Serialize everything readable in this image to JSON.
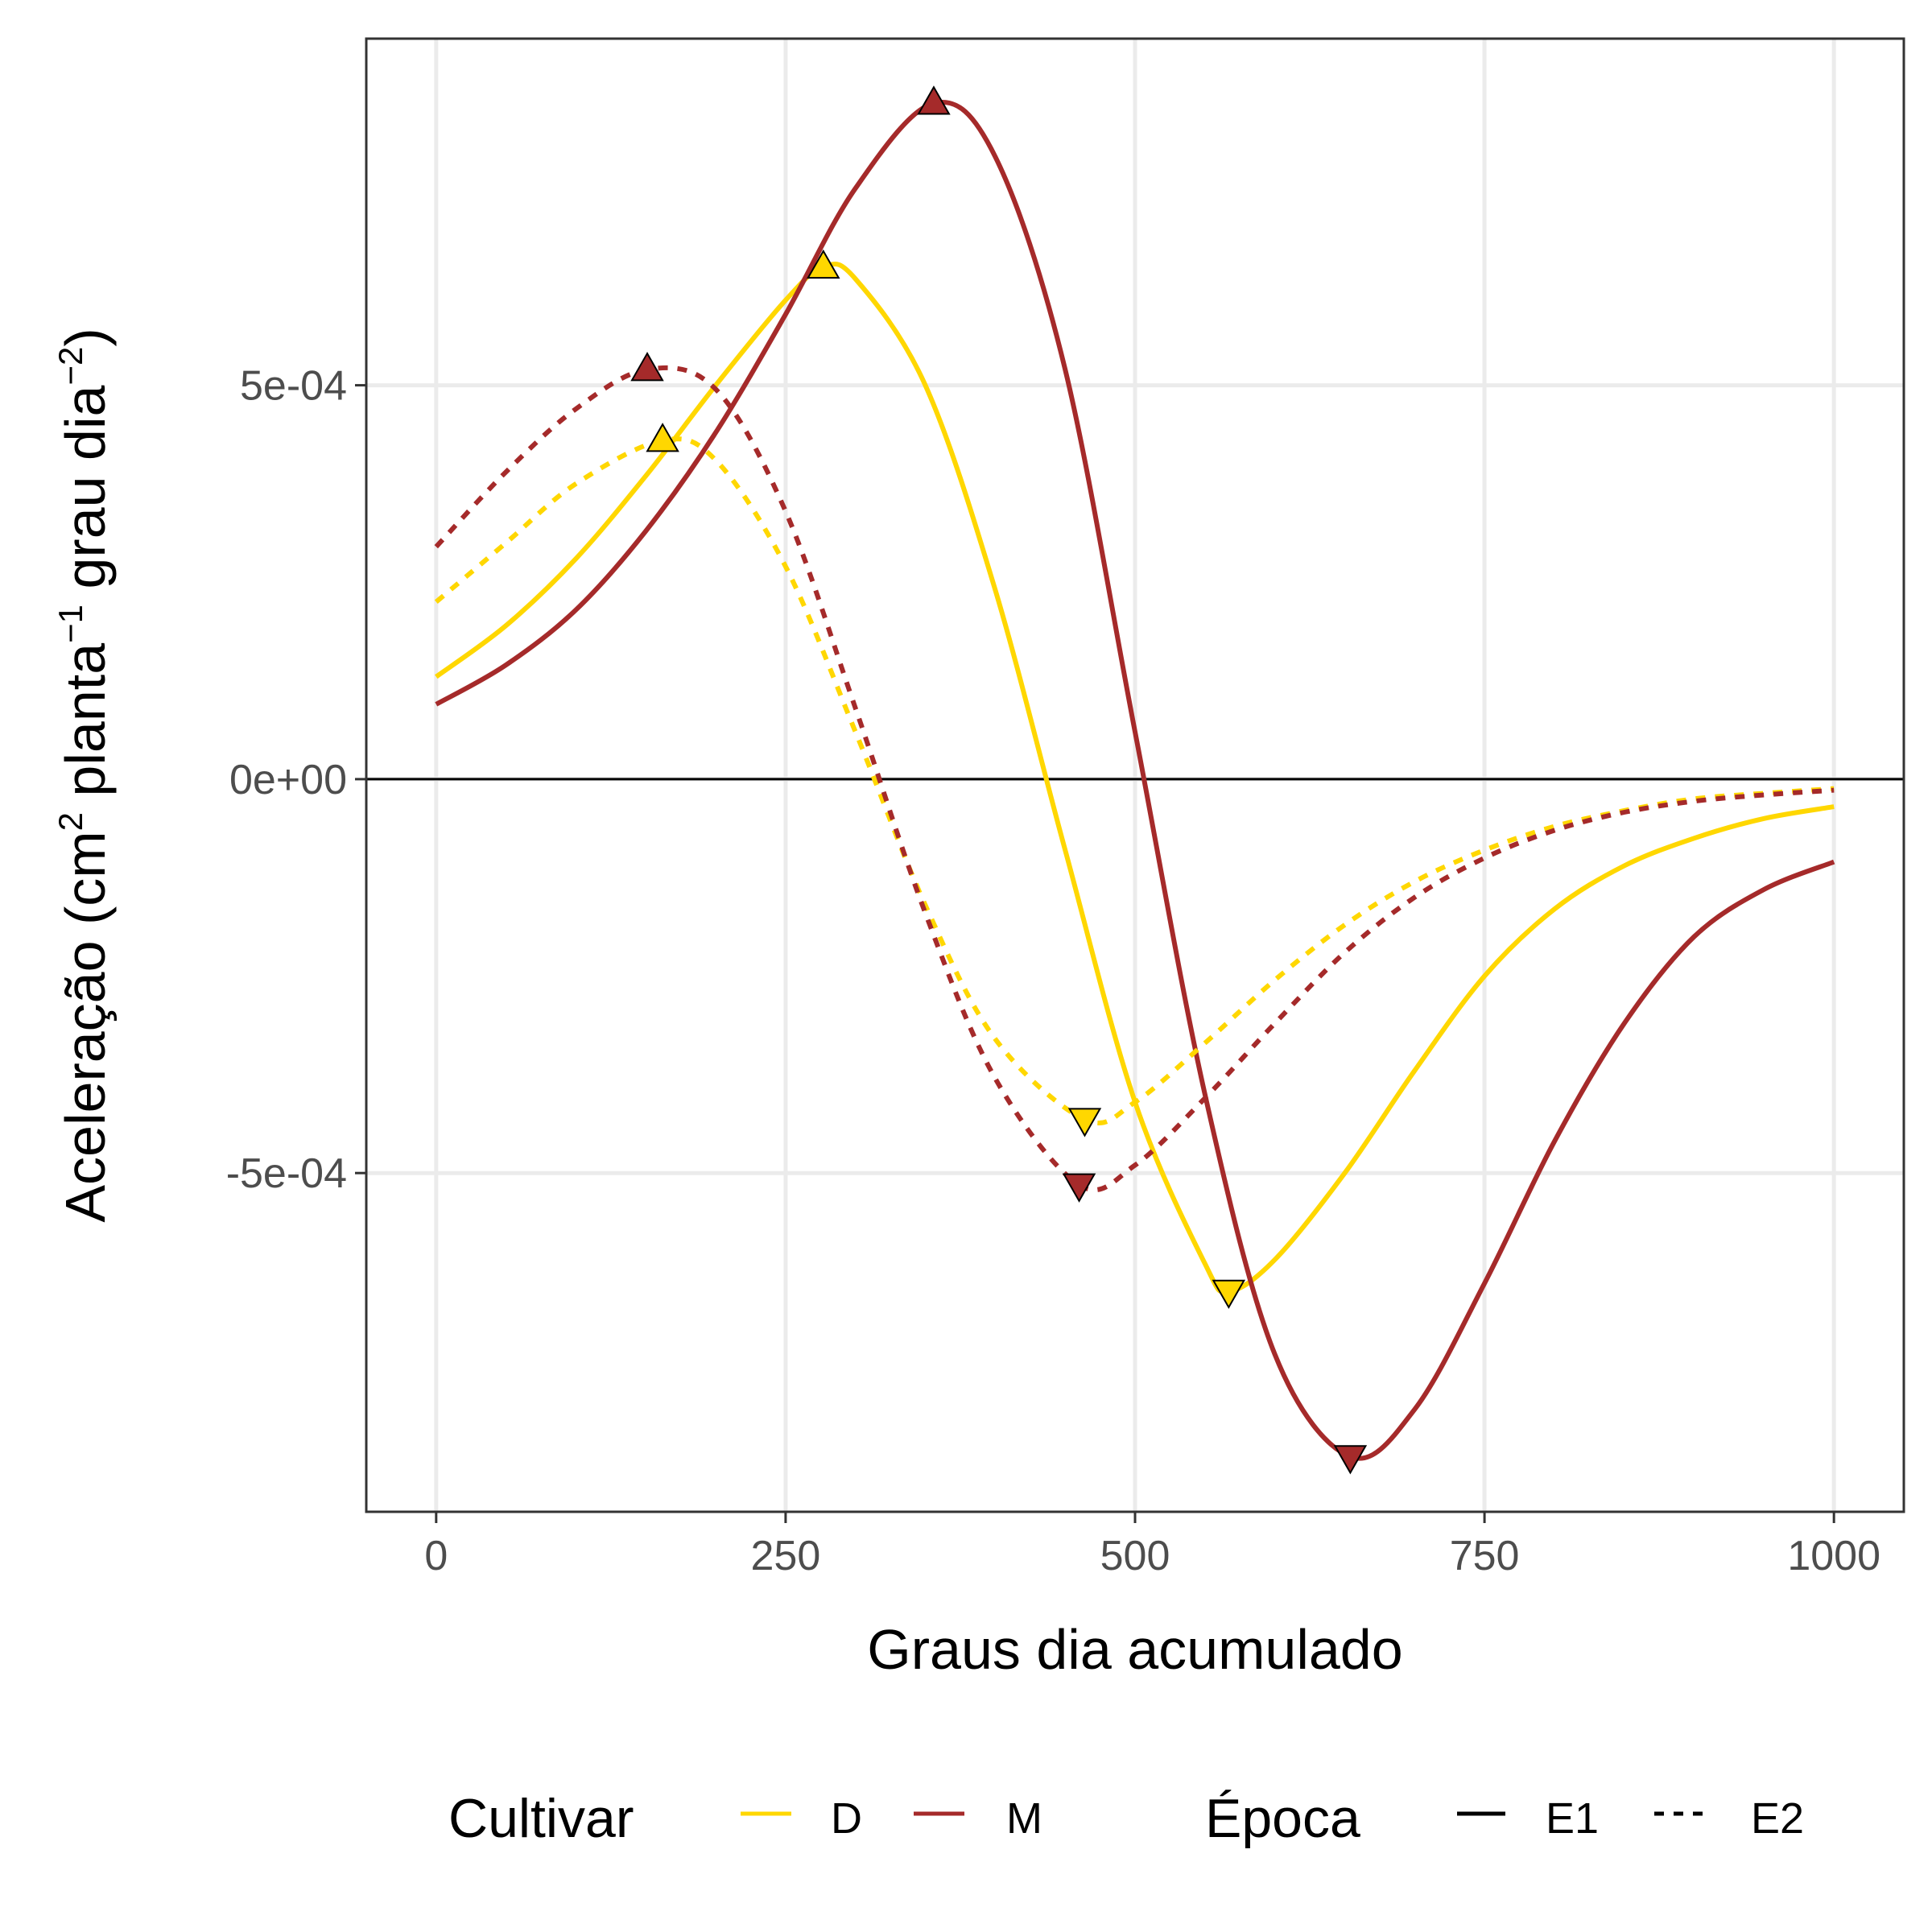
{
  "chart_data": {
    "type": "line",
    "xlabel": "Graus dia acumulado",
    "ylabel": {
      "prefix": "Aceleração (cm",
      "sup1": "2",
      "mid1": " planta",
      "sup2": "−1",
      "mid2": " grau dia",
      "sup3": "−2",
      "suffix": ")"
    },
    "xlim": [
      -50,
      1050
    ],
    "ylim": [
      -0.00093,
      0.00094
    ],
    "x_ticks": [
      0,
      250,
      500,
      750,
      1000
    ],
    "x_tick_labels": [
      "0",
      "250",
      "500",
      "750",
      "1000"
    ],
    "y_ticks": [
      -0.0005,
      0,
      0.0005
    ],
    "y_tick_labels": [
      "-5e-04",
      "0e+00",
      "5e-04"
    ],
    "grid": true,
    "hline": 0,
    "legend_position": "bottom",
    "legend": {
      "color_title": "Cultivar",
      "color_entries": [
        "D",
        "M"
      ],
      "linetype_title": "Época",
      "linetype_entries": [
        "E1",
        "E2"
      ]
    },
    "colors": {
      "D": "#FFD700",
      "M": "#A52A2A"
    },
    "series": [
      {
        "cultivar": "D",
        "epoca": "E1",
        "linetype": "solid",
        "x": [
          0,
          50,
          100,
          150,
          200,
          250,
          277,
          300,
          350,
          400,
          450,
          500,
          550,
          567,
          600,
          650,
          700,
          750,
          800,
          850,
          900,
          950,
          1000
        ],
        "y": [
          0.00013,
          0.000195,
          0.00028,
          0.000385,
          0.0005,
          0.000608,
          0.00065,
          0.000635,
          0.0005,
          0.00024,
          -9e-05,
          -0.00041,
          -0.000615,
          -0.00065,
          -0.00061,
          -0.0005,
          -0.00037,
          -0.00025,
          -0.000165,
          -0.00011,
          -7.5e-05,
          -5e-05,
          -3.5e-05
        ]
      },
      {
        "cultivar": "M",
        "epoca": "E1",
        "linetype": "solid",
        "x": [
          0,
          50,
          100,
          150,
          200,
          250,
          300,
          356,
          400,
          450,
          500,
          550,
          600,
          654,
          700,
          750,
          800,
          850,
          900,
          950,
          1000
        ],
        "y": [
          9.5e-05,
          0.000145,
          0.000215,
          0.000315,
          0.00044,
          0.00059,
          0.00075,
          0.000858,
          0.00079,
          0.00052,
          6e-05,
          -0.0004,
          -0.00073,
          -0.00086,
          -0.0008,
          -0.00064,
          -0.00046,
          -0.00031,
          -0.0002,
          -0.00014,
          -0.000105
        ]
      },
      {
        "cultivar": "D",
        "epoca": "E2",
        "linetype": "dashed",
        "x": [
          0,
          50,
          100,
          162,
          200,
          250,
          300,
          350,
          400,
          464,
          500,
          550,
          600,
          650,
          700,
          750,
          800,
          850,
          900,
          950,
          1000
        ],
        "y": [
          0.000225,
          0.0003,
          0.000375,
          0.00043,
          0.000405,
          0.00027,
          6e-05,
          -0.00016,
          -0.00033,
          -0.000432,
          -0.00041,
          -0.000335,
          -0.000255,
          -0.000185,
          -0.00013,
          -9e-05,
          -6e-05,
          -4e-05,
          -2.5e-05,
          -1.8e-05,
          -1.2e-05
        ]
      },
      {
        "cultivar": "M",
        "epoca": "E2",
        "linetype": "dashed",
        "x": [
          0,
          50,
          100,
          151,
          200,
          250,
          300,
          350,
          400,
          460,
          500,
          550,
          600,
          650,
          700,
          750,
          800,
          850,
          900,
          950,
          1000
        ],
        "y": [
          0.000295,
          0.00039,
          0.00047,
          0.00052,
          0.000495,
          0.00034,
          9e-05,
          -0.00017,
          -0.00038,
          -0.000515,
          -0.00049,
          -0.000405,
          -0.00031,
          -0.00022,
          -0.00015,
          -0.0001,
          -6.5e-05,
          -4.2e-05,
          -2.8e-05,
          -2e-05,
          -1.4e-05
        ]
      }
    ],
    "markers": [
      {
        "cultivar": "M",
        "epoca": "E2",
        "shape": "triangle-up",
        "x": 151,
        "y": 0.00052
      },
      {
        "cultivar": "D",
        "epoca": "E2",
        "shape": "triangle-up",
        "x": 162,
        "y": 0.00043
      },
      {
        "cultivar": "D",
        "epoca": "E1",
        "shape": "triangle-up",
        "x": 277,
        "y": 0.00065
      },
      {
        "cultivar": "M",
        "epoca": "E1",
        "shape": "triangle-up",
        "x": 356,
        "y": 0.000858
      },
      {
        "cultivar": "D",
        "epoca": "E2",
        "shape": "triangle-down",
        "x": 464,
        "y": -0.000432
      },
      {
        "cultivar": "M",
        "epoca": "E2",
        "shape": "triangle-down",
        "x": 460,
        "y": -0.000515
      },
      {
        "cultivar": "D",
        "epoca": "E1",
        "shape": "triangle-down",
        "x": 567,
        "y": -0.00065
      },
      {
        "cultivar": "M",
        "epoca": "E1",
        "shape": "triangle-down",
        "x": 654,
        "y": -0.00086
      }
    ]
  }
}
